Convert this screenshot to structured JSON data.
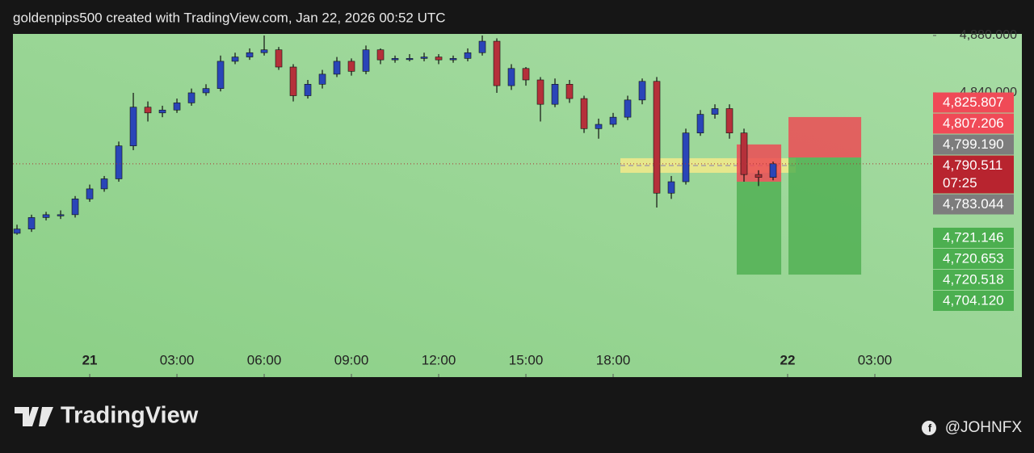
{
  "chart_data": {
    "type": "candlestick",
    "title": "goldenpips500 created with TradingView.com, Jan 22, 2026 00:52 UTC",
    "x": [
      -2.5,
      -2,
      -1.5,
      -1,
      -0.5,
      0,
      0.5,
      1,
      1.5,
      2,
      2.5,
      3,
      3.5,
      4,
      4.5,
      5,
      5.5,
      6,
      6.5,
      7,
      7.5,
      8,
      8.5,
      9,
      9.5,
      10,
      10.5,
      11,
      11.5,
      12,
      12.5,
      13,
      13.5,
      14,
      14.5,
      15,
      15.5,
      16,
      16.5,
      17,
      17.5,
      18,
      18.5,
      19,
      19.5,
      20,
      20.5,
      21,
      21.5,
      22,
      22.5,
      23,
      23.5
    ],
    "open": [
      4742,
      4745,
      4753,
      4755,
      4755,
      4766,
      4773,
      4780,
      4803,
      4830,
      4826,
      4828,
      4833,
      4840,
      4843,
      4862,
      4865,
      4868,
      4870,
      4858,
      4838,
      4846,
      4853,
      4862,
      4855,
      4870,
      4863,
      4864,
      4864,
      4865,
      4863,
      4864,
      4868,
      4876,
      4845,
      4857,
      4849,
      4832,
      4846,
      4836,
      4815,
      4818,
      4823,
      4835,
      4848,
      4770,
      4778,
      4812,
      4825,
      4829,
      4812,
      4783,
      4781
    ],
    "high": [
      4748,
      4755,
      4757,
      4758,
      4768,
      4776,
      4782,
      4806,
      4840,
      4834,
      4831,
      4836,
      4843,
      4846,
      4866,
      4868,
      4871,
      4880,
      4872,
      4860,
      4849,
      4856,
      4865,
      4864,
      4873,
      4871,
      4866,
      4867,
      4868,
      4867,
      4866,
      4871,
      4880,
      4878,
      4860,
      4858,
      4851,
      4850,
      4849,
      4838,
      4822,
      4826,
      4838,
      4850,
      4851,
      4782,
      4815,
      4828,
      4832,
      4832,
      4815,
      4786,
      4792
    ],
    "low": [
      4741,
      4743,
      4751,
      4752,
      4753,
      4764,
      4771,
      4778,
      4800,
      4820,
      4823,
      4826,
      4831,
      4838,
      4841,
      4860,
      4863,
      4866,
      4856,
      4834,
      4836,
      4843,
      4851,
      4852,
      4853,
      4860,
      4861,
      4862,
      4862,
      4860,
      4861,
      4862,
      4866,
      4840,
      4842,
      4845,
      4820,
      4830,
      4833,
      4812,
      4808,
      4816,
      4821,
      4832,
      4760,
      4766,
      4776,
      4810,
      4822,
      4808,
      4778,
      4775,
      4779
    ],
    "close": [
      4745,
      4753,
      4755,
      4755,
      4766,
      4773,
      4780,
      4803,
      4830,
      4826,
      4828,
      4833,
      4840,
      4843,
      4862,
      4865,
      4868,
      4870,
      4858,
      4838,
      4846,
      4853,
      4862,
      4855,
      4870,
      4863,
      4864,
      4864,
      4865,
      4863,
      4864,
      4868,
      4876,
      4845,
      4857,
      4849,
      4832,
      4846,
      4836,
      4815,
      4818,
      4823,
      4835,
      4848,
      4770,
      4778,
      4812,
      4825,
      4829,
      4812,
      4783,
      4781,
      4790.511
    ],
    "up_color": "#2a45b8",
    "down_color": "#b5303a",
    "xlim": [
      -2.64,
      29
    ],
    "xticks": [
      {
        "value": 0,
        "label": "21"
      },
      {
        "value": 3,
        "label": "03:00"
      },
      {
        "value": 6,
        "label": "06:00"
      },
      {
        "value": 9,
        "label": "09:00"
      },
      {
        "value": 12,
        "label": "12:00"
      },
      {
        "value": 15,
        "label": "15:00"
      },
      {
        "value": 18,
        "label": "18:00"
      },
      {
        "value": 24,
        "label": "22"
      },
      {
        "value": 27,
        "label": "03:00"
      }
    ],
    "ylim": [
      4641.7,
      4881.1
    ],
    "yticks": [
      {
        "value": 4880,
        "label": "4,880.000"
      },
      {
        "value": 4840,
        "label": "4,840.000"
      }
    ],
    "zone": {
      "x": [
        18.25,
        24.28
      ],
      "y": [
        4784.2,
        4794.4
      ],
      "color": "#f3ea8a"
    },
    "positions": [
      {
        "x_start": 22.25,
        "x_end": 23.78,
        "entry": 4778,
        "stop": 4804,
        "target": 4713.2
      },
      {
        "x_start": 24.03,
        "x_end": 26.53,
        "entry": 4794.9,
        "stop": 4823.1,
        "target": 4713.2
      }
    ],
    "price_labels": [
      {
        "value": 4825.807,
        "label": "4,825.807",
        "color": "#f04a57"
      },
      {
        "value": 4807.206,
        "label": "4,807.206",
        "color": "#f04a57"
      },
      {
        "value": 4799.19,
        "label": "4,799.190",
        "color": "#7d7d7d"
      },
      {
        "value": 4790.511,
        "label": "4,790.511",
        "color": "#b8242f",
        "countdown": "07:25"
      },
      {
        "value": 4783.044,
        "label": "4,783.044",
        "color": "#7d7d7d"
      },
      {
        "value": 4721.146,
        "label": "4,721.146",
        "color": "#4caf50"
      },
      {
        "value": 4720.653,
        "label": "4,720.653",
        "color": "#4caf50"
      },
      {
        "value": 4720.518,
        "label": "4,720.518",
        "color": "#4caf50"
      },
      {
        "value": 4704.12,
        "label": "4,704.120",
        "color": "#4caf50"
      }
    ],
    "brand": "TradingView",
    "watermark": "@JOHNFX"
  }
}
